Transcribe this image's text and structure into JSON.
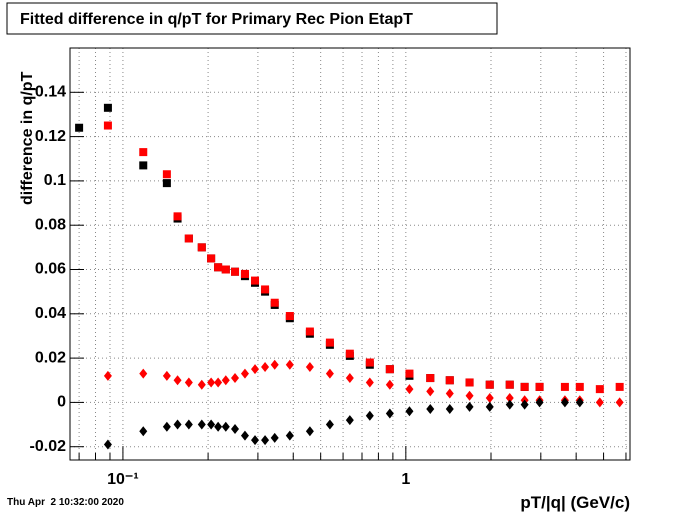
{
  "chart_data": {
    "type": "scatter",
    "title": "Fitted difference in q/pT for Primary Rec Pion EtapT",
    "x_label": "pT/|q| (GeV/c)",
    "y_label": "difference in q/pT",
    "timestamp": "Thu Apr  2 10:32:00 2020",
    "x_scale": "log",
    "grid": true,
    "xlim": [
      0.065,
      6.2
    ],
    "ylim": [
      -0.026,
      0.16
    ],
    "xticks": [
      {
        "value": 0.1,
        "label": "10⁻¹"
      },
      1
    ],
    "xminor_ticks": [
      0.07,
      0.08,
      0.09,
      0.2,
      0.3,
      0.4,
      0.5,
      0.6,
      0.7,
      0.8,
      0.9,
      2,
      3,
      4,
      5,
      6
    ],
    "yticks": [
      -0.02,
      0,
      0.02,
      0.04,
      0.06,
      0.08,
      0.1,
      0.12,
      0.14
    ],
    "x": [
      0.07,
      0.0885,
      0.118,
      0.143,
      0.156,
      0.171,
      0.19,
      0.205,
      0.217,
      0.231,
      0.249,
      0.27,
      0.293,
      0.318,
      0.344,
      0.389,
      0.458,
      0.539,
      0.634,
      0.746,
      0.878,
      1.03,
      1.22,
      1.43,
      1.68,
      1.98,
      2.33,
      2.63,
      2.97,
      3.65,
      4.12,
      4.85,
      5.7
    ],
    "series": [
      {
        "color": "#000000",
        "marker": "square",
        "values": [
          0.124,
          0.133,
          0.107,
          0.099,
          0.083,
          0.074,
          0.07,
          0.065,
          0.061,
          0.06,
          0.059,
          0.057,
          0.054,
          0.05,
          0.044,
          0.038,
          0.031,
          0.026,
          0.021,
          0.017,
          0.015,
          0.012,
          0.011,
          0.01,
          0.009,
          0.008,
          0.008,
          0.007,
          0.007,
          null,
          null,
          null,
          null
        ]
      },
      {
        "color": "#ff0000",
        "marker": "square",
        "values": [
          null,
          0.125,
          0.113,
          0.103,
          0.084,
          0.074,
          0.07,
          0.065,
          0.061,
          0.06,
          0.059,
          0.058,
          0.055,
          0.051,
          0.045,
          0.039,
          0.032,
          0.027,
          0.022,
          0.018,
          0.015,
          0.013,
          0.011,
          0.01,
          0.009,
          0.008,
          0.008,
          0.007,
          0.007,
          0.007,
          0.007,
          0.006,
          0.007
        ]
      },
      {
        "color": "#ff0000",
        "marker": "diamond",
        "values": [
          null,
          0.012,
          0.013,
          0.012,
          0.01,
          0.009,
          0.008,
          0.009,
          0.009,
          0.01,
          0.011,
          0.013,
          0.015,
          0.016,
          0.017,
          0.017,
          0.016,
          0.013,
          0.011,
          0.009,
          0.008,
          0.006,
          0.005,
          0.004,
          0.003,
          0.002,
          0.002,
          0.001,
          0.001,
          0.001,
          0.001,
          0.0,
          0.0
        ]
      },
      {
        "color": "#000000",
        "marker": "diamond",
        "values": [
          null,
          -0.019,
          -0.013,
          -0.011,
          -0.01,
          -0.01,
          -0.01,
          -0.01,
          -0.011,
          -0.011,
          -0.012,
          -0.015,
          -0.017,
          -0.017,
          -0.016,
          -0.015,
          -0.013,
          -0.01,
          -0.008,
          -0.006,
          -0.005,
          -0.004,
          -0.003,
          -0.003,
          -0.002,
          -0.002,
          -0.001,
          -0.001,
          0.0,
          0.0,
          0.0,
          null,
          null
        ]
      }
    ]
  }
}
